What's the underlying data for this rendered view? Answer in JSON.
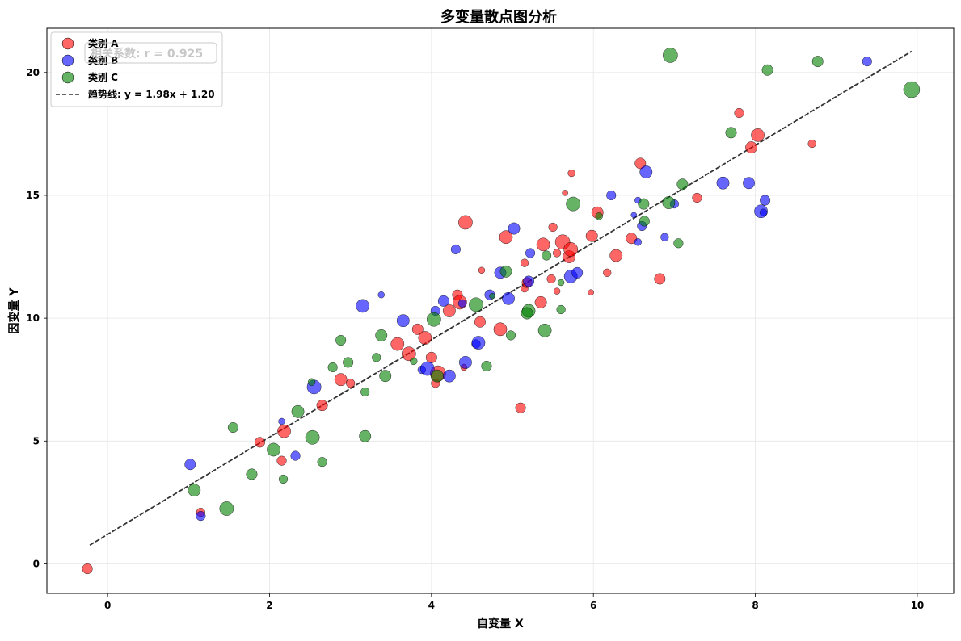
{
  "chart_data": {
    "type": "scatter",
    "title": "多变量散点图分析",
    "xlabel": "自变量 X",
    "ylabel": "因变量 Y",
    "xlim": [
      -0.75,
      10.45
    ],
    "ylim": [
      -1.2,
      21.8
    ],
    "xticks": [
      0,
      2,
      4,
      6,
      8,
      10
    ],
    "yticks": [
      0,
      5,
      10,
      15,
      20
    ],
    "grid": true,
    "legend_position": "top-left",
    "annotation": "相关系数: r = 0.925",
    "trendline": {
      "label": "趋势线: y = 1.98x + 1.20",
      "slope": 1.98,
      "intercept": 1.2,
      "x_range": [
        -0.22,
        9.93
      ],
      "color": "#333333"
    },
    "size_scale": {
      "min": 0.3,
      "max": 1.0
    },
    "series": [
      {
        "name": "类别 A",
        "color": "#ff0000",
        "points": [
          [
            -0.25,
            -0.2,
            0.6
          ],
          [
            1.15,
            2.1,
            0.5
          ],
          [
            1.88,
            4.95,
            0.6
          ],
          [
            2.15,
            4.2,
            0.55
          ],
          [
            2.18,
            5.4,
            0.8
          ],
          [
            2.65,
            6.45,
            0.65
          ],
          [
            2.88,
            7.5,
            0.75
          ],
          [
            3.0,
            7.35,
            0.5
          ],
          [
            3.58,
            8.95,
            0.8
          ],
          [
            3.72,
            8.55,
            0.85
          ],
          [
            3.83,
            9.55,
            0.65
          ],
          [
            3.92,
            9.2,
            0.8
          ],
          [
            4.0,
            8.4,
            0.65
          ],
          [
            4.05,
            7.35,
            0.5
          ],
          [
            4.08,
            7.75,
            0.95
          ],
          [
            4.22,
            10.3,
            0.75
          ],
          [
            4.32,
            10.95,
            0.6
          ],
          [
            4.35,
            10.65,
            0.85
          ],
          [
            4.42,
            13.9,
            0.85
          ],
          [
            4.62,
            11.95,
            0.35
          ],
          [
            4.6,
            9.85,
            0.65
          ],
          [
            4.85,
            9.55,
            0.8
          ],
          [
            4.92,
            13.3,
            0.8
          ],
          [
            5.1,
            6.35,
            0.6
          ],
          [
            5.15,
            12.25,
            0.45
          ],
          [
            5.15,
            11.2,
            0.4
          ],
          [
            5.18,
            11.45,
            0.6
          ],
          [
            5.35,
            10.65,
            0.7
          ],
          [
            5.38,
            13.0,
            0.8
          ],
          [
            5.5,
            13.7,
            0.5
          ],
          [
            5.48,
            11.6,
            0.5
          ],
          [
            5.55,
            11.1,
            0.35
          ],
          [
            5.55,
            12.65,
            0.45
          ],
          [
            5.62,
            13.1,
            0.9
          ],
          [
            5.65,
            15.1,
            0.3
          ],
          [
            5.7,
            12.5,
            0.75
          ],
          [
            5.72,
            12.8,
            0.85
          ],
          [
            5.73,
            15.9,
            0.4
          ],
          [
            5.97,
            11.05,
            0.3
          ],
          [
            5.98,
            13.35,
            0.7
          ],
          [
            6.05,
            14.3,
            0.7
          ],
          [
            6.17,
            11.85,
            0.45
          ],
          [
            6.28,
            12.55,
            0.75
          ],
          [
            6.47,
            13.25,
            0.65
          ],
          [
            6.58,
            16.3,
            0.65
          ],
          [
            6.82,
            11.6,
            0.65
          ],
          [
            7.28,
            14.9,
            0.55
          ],
          [
            7.8,
            18.35,
            0.55
          ],
          [
            7.95,
            16.95,
            0.7
          ],
          [
            8.03,
            17.45,
            0.8
          ],
          [
            8.7,
            17.1,
            0.45
          ],
          [
            4.4,
            8.0,
            0.35
          ]
        ]
      },
      {
        "name": "类别 B",
        "color": "#0000ff",
        "points": [
          [
            1.02,
            4.05,
            0.65
          ],
          [
            1.15,
            1.95,
            0.55
          ],
          [
            2.15,
            5.8,
            0.35
          ],
          [
            2.32,
            4.4,
            0.55
          ],
          [
            2.55,
            7.2,
            0.85
          ],
          [
            3.15,
            10.5,
            0.8
          ],
          [
            3.38,
            10.95,
            0.35
          ],
          [
            3.65,
            9.9,
            0.75
          ],
          [
            3.88,
            7.9,
            0.45
          ],
          [
            3.95,
            7.95,
            0.85
          ],
          [
            4.05,
            10.3,
            0.55
          ],
          [
            4.15,
            10.7,
            0.65
          ],
          [
            4.22,
            7.65,
            0.75
          ],
          [
            4.3,
            12.8,
            0.55
          ],
          [
            4.42,
            8.2,
            0.75
          ],
          [
            4.55,
            8.95,
            0.5
          ],
          [
            4.58,
            9.0,
            0.8
          ],
          [
            4.72,
            10.95,
            0.6
          ],
          [
            4.85,
            11.85,
            0.7
          ],
          [
            4.95,
            10.8,
            0.75
          ],
          [
            5.02,
            13.65,
            0.7
          ],
          [
            5.2,
            11.5,
            0.65
          ],
          [
            5.22,
            12.65,
            0.55
          ],
          [
            5.72,
            11.7,
            0.8
          ],
          [
            5.8,
            11.85,
            0.65
          ],
          [
            6.22,
            15.0,
            0.55
          ],
          [
            6.5,
            14.2,
            0.3
          ],
          [
            6.55,
            13.1,
            0.4
          ],
          [
            6.6,
            13.75,
            0.55
          ],
          [
            6.65,
            15.95,
            0.75
          ],
          [
            6.88,
            13.3,
            0.45
          ],
          [
            7.0,
            14.65,
            0.5
          ],
          [
            7.6,
            15.5,
            0.75
          ],
          [
            7.92,
            15.5,
            0.7
          ],
          [
            8.07,
            14.35,
            0.8
          ],
          [
            8.12,
            14.8,
            0.6
          ],
          [
            8.1,
            14.3,
            0.4
          ],
          [
            9.38,
            20.45,
            0.55
          ],
          [
            6.55,
            14.8,
            0.35
          ],
          [
            4.38,
            10.6,
            0.45
          ]
        ]
      },
      {
        "name": "类别 C",
        "color": "#008000",
        "points": [
          [
            1.07,
            3.0,
            0.75
          ],
          [
            1.47,
            2.25,
            0.85
          ],
          [
            1.55,
            5.55,
            0.6
          ],
          [
            1.78,
            3.65,
            0.65
          ],
          [
            2.05,
            4.65,
            0.8
          ],
          [
            2.17,
            3.45,
            0.5
          ],
          [
            2.35,
            6.2,
            0.75
          ],
          [
            2.52,
            7.4,
            0.4
          ],
          [
            2.53,
            5.15,
            0.85
          ],
          [
            2.65,
            4.15,
            0.55
          ],
          [
            2.78,
            8.0,
            0.55
          ],
          [
            2.88,
            9.1,
            0.6
          ],
          [
            2.97,
            8.2,
            0.6
          ],
          [
            3.18,
            7.0,
            0.5
          ],
          [
            3.18,
            5.2,
            0.7
          ],
          [
            3.32,
            8.4,
            0.5
          ],
          [
            3.38,
            9.3,
            0.7
          ],
          [
            3.43,
            7.65,
            0.7
          ],
          [
            4.03,
            9.95,
            0.85
          ],
          [
            4.07,
            7.65,
            0.75
          ],
          [
            4.55,
            10.55,
            0.85
          ],
          [
            4.68,
            8.05,
            0.6
          ],
          [
            4.75,
            10.9,
            0.3
          ],
          [
            4.92,
            11.9,
            0.7
          ],
          [
            4.98,
            9.3,
            0.55
          ],
          [
            5.2,
            10.3,
            0.8
          ],
          [
            5.18,
            10.2,
            0.7
          ],
          [
            5.42,
            12.55,
            0.55
          ],
          [
            5.4,
            9.5,
            0.8
          ],
          [
            5.6,
            10.35,
            0.5
          ],
          [
            5.6,
            11.45,
            0.35
          ],
          [
            5.75,
            14.65,
            0.85
          ],
          [
            6.07,
            14.15,
            0.4
          ],
          [
            6.62,
            14.65,
            0.65
          ],
          [
            6.63,
            13.95,
            0.6
          ],
          [
            6.93,
            14.7,
            0.75
          ],
          [
            6.95,
            20.7,
            0.9
          ],
          [
            7.05,
            13.05,
            0.55
          ],
          [
            7.1,
            15.45,
            0.65
          ],
          [
            7.7,
            17.55,
            0.65
          ],
          [
            8.15,
            20.1,
            0.65
          ],
          [
            8.77,
            20.45,
            0.65
          ],
          [
            9.93,
            19.3,
            1.0
          ],
          [
            3.78,
            8.25,
            0.4
          ]
        ]
      }
    ]
  }
}
